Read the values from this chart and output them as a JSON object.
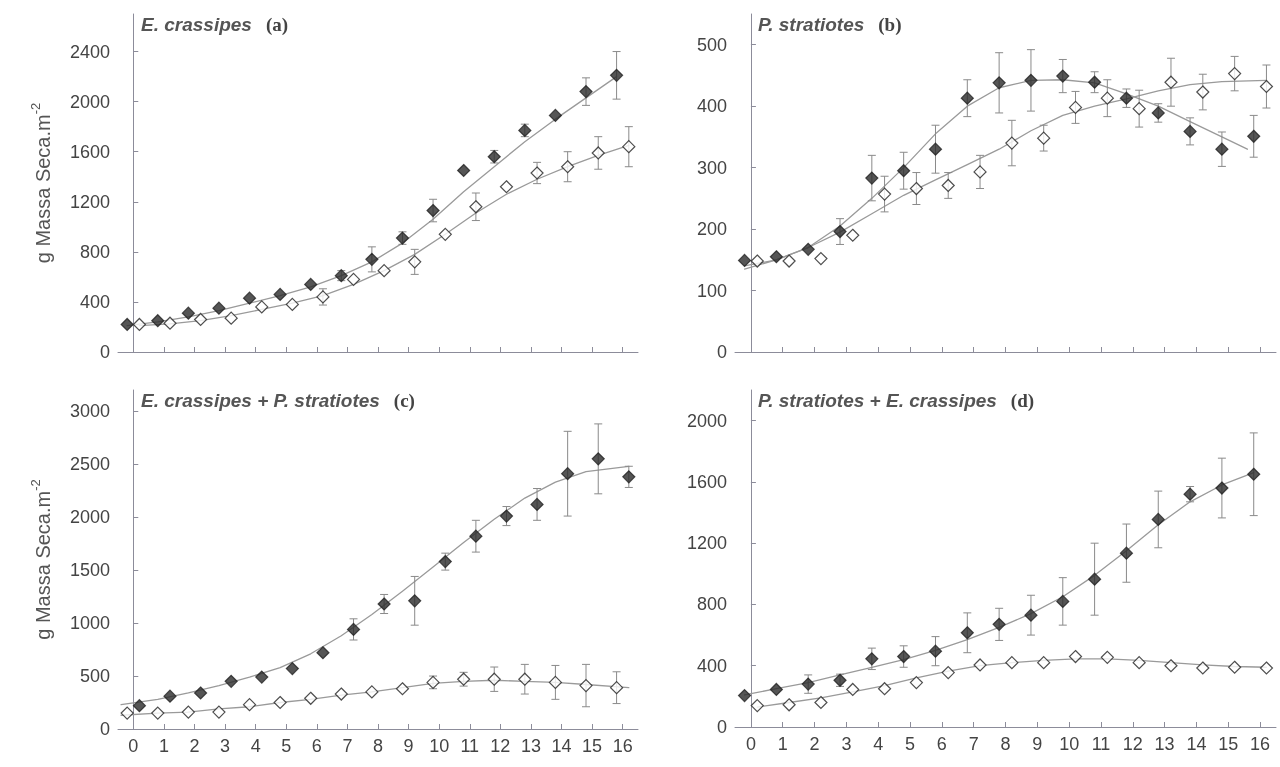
{
  "chart_data": [
    {
      "type": "scatter",
      "title": "E. crassipes (a)",
      "ylabel": "g Massa Seca.m$^{-2}$",
      "xlim": [
        -0.5,
        16.5
      ],
      "xticks": [
        0,
        1,
        2,
        3,
        4,
        5,
        6,
        7,
        8,
        9,
        10,
        11,
        12,
        13,
        14,
        15,
        16
      ],
      "ylim": [
        0,
        2700
      ],
      "yticks": [
        0,
        400,
        800,
        1200,
        1600,
        2000,
        2400
      ],
      "tick_labels": "y",
      "marker": "diamond",
      "series": [
        {
          "type": "line",
          "marker": "none",
          "color": "#9a9a9a",
          "x": [
            -0.2,
            0.8,
            1.8,
            2.8,
            3.8,
            4.8,
            5.8,
            6.8,
            7.8,
            8.8,
            9.8,
            10.8,
            11.8,
            12.8,
            13.8,
            14.8,
            15.8
          ],
          "values": [
            210,
            240,
            280,
            330,
            390,
            450,
            520,
            610,
            720,
            870,
            1060,
            1280,
            1480,
            1680,
            1860,
            2030,
            2200
          ]
        },
        {
          "type": "line",
          "marker": "none",
          "color": "#9a9a9a",
          "x": [
            0.2,
            1.2,
            2.2,
            3.2,
            4.2,
            5.2,
            6.2,
            7.2,
            8.2,
            9.2,
            10.2,
            11.2,
            12.2,
            13.2,
            14.2,
            15.2,
            16.2
          ],
          "values": [
            210,
            225,
            250,
            290,
            340,
            390,
            450,
            540,
            650,
            780,
            940,
            1110,
            1260,
            1380,
            1480,
            1570,
            1650
          ]
        },
        {
          "color": "#2b2b2b",
          "x": [
            -0.2,
            0.8,
            1.8,
            2.8,
            3.8,
            4.8,
            5.8,
            6.8,
            7.8,
            8.8,
            9.8,
            10.8,
            11.8,
            12.8,
            13.8,
            14.8,
            15.8
          ],
          "values": [
            220,
            250,
            310,
            350,
            430,
            460,
            540,
            610,
            740,
            910,
            1130,
            1450,
            1560,
            1770,
            1890,
            2080,
            2210
          ],
          "errors": [
            null,
            null,
            null,
            null,
            null,
            null,
            null,
            40,
            100,
            50,
            90,
            null,
            50,
            50,
            null,
            110,
            190
          ]
        },
        {
          "color": "#ffffff",
          "x": [
            0.2,
            1.2,
            2.2,
            3.2,
            4.2,
            5.2,
            6.2,
            7.2,
            8.2,
            9.2,
            10.2,
            11.2,
            12.2,
            13.2,
            14.2,
            15.2,
            16.2
          ],
          "values": [
            220,
            230,
            260,
            270,
            360,
            380,
            440,
            580,
            650,
            720,
            940,
            1160,
            1320,
            1430,
            1480,
            1590,
            1640
          ],
          "errors": [
            null,
            null,
            null,
            null,
            null,
            null,
            65,
            null,
            null,
            100,
            null,
            110,
            null,
            85,
            120,
            130,
            160
          ]
        }
      ]
    },
    {
      "type": "scatter",
      "title": "P. stratiotes (b)",
      "xlim": [
        -0.5,
        16.5
      ],
      "xticks": [
        0,
        1,
        2,
        3,
        4,
        5,
        6,
        7,
        8,
        9,
        10,
        11,
        12,
        13,
        14,
        15,
        16
      ],
      "ylim": [
        0,
        550
      ],
      "yticks": [
        0,
        100,
        200,
        300,
        400,
        500
      ],
      "tick_labels": "y",
      "marker": "diamond",
      "series": [
        {
          "type": "line",
          "marker": "none",
          "color": "#9a9a9a",
          "x": [
            -0.2,
            0.8,
            1.8,
            2.8,
            3.8,
            4.8,
            5.8,
            6.8,
            7.8,
            8.8,
            9.8,
            10.8,
            11.8,
            12.8,
            13.8,
            14.8,
            15.6
          ],
          "values": [
            140,
            150,
            170,
            205,
            250,
            300,
            355,
            400,
            430,
            442,
            443,
            438,
            420,
            400,
            375,
            350,
            330
          ]
        },
        {
          "type": "line",
          "marker": "none",
          "color": "#9a9a9a",
          "x": [
            -0.2,
            0.8,
            1.8,
            2.8,
            3.8,
            4.8,
            5.8,
            6.8,
            7.8,
            8.8,
            9.8,
            10.8,
            11.8,
            12.8,
            13.8,
            14.8,
            16.2
          ],
          "values": [
            135,
            150,
            170,
            195,
            225,
            255,
            280,
            305,
            330,
            360,
            385,
            400,
            412,
            425,
            435,
            440,
            442
          ]
        },
        {
          "color": "#2b2b2b",
          "x": [
            -0.2,
            0.8,
            1.8,
            2.8,
            3.8,
            4.8,
            5.8,
            6.8,
            7.8,
            8.8,
            9.8,
            10.8,
            11.8,
            12.8,
            13.8,
            14.8,
            15.8
          ],
          "values": [
            149,
            155,
            167,
            196,
            283,
            295,
            330,
            413,
            438,
            442,
            449,
            439,
            413,
            389,
            359,
            330,
            351
          ],
          "errors": [
            null,
            null,
            null,
            21,
            37,
            30,
            39,
            30,
            49,
            50,
            27,
            17,
            15,
            15,
            22,
            28,
            34
          ]
        },
        {
          "color": "#ffffff",
          "x": [
            0.2,
            1.2,
            2.2,
            3.2,
            4.2,
            5.2,
            6.2,
            7.2,
            8.2,
            9.2,
            10.2,
            11.2,
            12.2,
            13.2,
            14.2,
            15.2,
            16.2
          ],
          "values": [
            148,
            148,
            152,
            190,
            257,
            266,
            271,
            293,
            340,
            348,
            398,
            413,
            396,
            439,
            423,
            453,
            432
          ],
          "errors": [
            null,
            null,
            null,
            null,
            29,
            26,
            21,
            27,
            37,
            21,
            26,
            30,
            30,
            39,
            29,
            28,
            35
          ]
        }
      ]
    },
    {
      "type": "scatter",
      "title": "E. crassipes + P. stratiotes (c)",
      "ylabel": "g Massa Seca.m$^{-2}$",
      "xlim": [
        -0.5,
        16.5
      ],
      "xticks": [
        0,
        1,
        2,
        3,
        4,
        5,
        6,
        7,
        8,
        9,
        10,
        11,
        12,
        13,
        14,
        15,
        16
      ],
      "ylim": [
        0,
        3200
      ],
      "yticks": [
        0,
        500,
        1000,
        1500,
        2000,
        2500,
        3000
      ],
      "marker": "diamond",
      "series": [
        {
          "type": "line",
          "marker": "none",
          "color": "#9a9a9a",
          "x": [
            -0.4,
            0.8,
            1.8,
            2.8,
            3.8,
            4.8,
            5.8,
            6.8,
            7.8,
            8.8,
            9.8,
            10.8,
            11.8,
            12.8,
            13.8,
            14.8,
            16.2
          ],
          "values": [
            230,
            280,
            340,
            410,
            490,
            580,
            710,
            880,
            1080,
            1300,
            1530,
            1760,
            1980,
            2180,
            2330,
            2430,
            2480
          ]
        },
        {
          "type": "line",
          "marker": "none",
          "color": "#9a9a9a",
          "x": [
            -0.4,
            0.8,
            1.8,
            2.8,
            3.8,
            4.8,
            5.8,
            6.8,
            7.8,
            8.8,
            9.8,
            10.8,
            11.8,
            12.8,
            13.8,
            14.8,
            16.2
          ],
          "values": [
            130,
            150,
            160,
            190,
            210,
            250,
            280,
            320,
            350,
            390,
            430,
            450,
            460,
            450,
            440,
            420,
            390
          ]
        },
        {
          "color": "#2b2b2b",
          "x": [
            0.2,
            1.2,
            2.2,
            3.2,
            4.2,
            5.2,
            6.2,
            7.2,
            8.2,
            9.2,
            10.2,
            11.2,
            12.2,
            13.2,
            14.2,
            15.2,
            16.2
          ],
          "values": [
            220,
            310,
            340,
            450,
            490,
            570,
            720,
            940,
            1180,
            1210,
            1580,
            1820,
            2010,
            2120,
            2410,
            2550,
            2380
          ],
          "errors": [
            null,
            null,
            null,
            null,
            null,
            null,
            null,
            100,
            90,
            230,
            80,
            150,
            90,
            150,
            400,
            330,
            100
          ]
        },
        {
          "color": "#ffffff",
          "x": [
            -0.2,
            0.8,
            1.8,
            2.8,
            3.8,
            4.8,
            5.8,
            6.8,
            7.8,
            8.8,
            9.8,
            10.8,
            11.8,
            12.8,
            13.8,
            14.8,
            15.8
          ],
          "values": [
            150,
            150,
            160,
            160,
            230,
            250,
            290,
            330,
            350,
            380,
            440,
            470,
            470,
            470,
            440,
            410,
            390
          ],
          "errors": [
            null,
            null,
            null,
            null,
            null,
            null,
            null,
            null,
            null,
            null,
            60,
            65,
            115,
            140,
            160,
            200,
            150
          ]
        }
      ]
    },
    {
      "type": "scatter",
      "title": "P. stratiotes + E. crassipes (d)",
      "xlim": [
        -0.5,
        16.5
      ],
      "xticks": [
        0,
        1,
        2,
        3,
        4,
        5,
        6,
        7,
        8,
        9,
        10,
        11,
        12,
        13,
        14,
        15,
        16
      ],
      "ylim": [
        0,
        2200
      ],
      "yticks": [
        0,
        400,
        800,
        1200,
        1600,
        2000
      ],
      "marker": "diamond",
      "series": [
        {
          "type": "line",
          "marker": "none",
          "color": "#9a9a9a",
          "x": [
            -0.2,
            0.8,
            1.8,
            2.8,
            3.8,
            4.8,
            5.8,
            6.8,
            7.8,
            8.8,
            9.8,
            10.8,
            11.8,
            12.8,
            13.8,
            14.8,
            15.8
          ],
          "values": [
            210,
            250,
            290,
            340,
            390,
            440,
            500,
            570,
            650,
            740,
            850,
            990,
            1150,
            1320,
            1470,
            1580,
            1660
          ]
        },
        {
          "type": "line",
          "marker": "none",
          "color": "#9a9a9a",
          "x": [
            0.2,
            1.2,
            2.2,
            3.2,
            4.2,
            5.2,
            6.2,
            7.2,
            8.2,
            9.2,
            10.2,
            11.2,
            12.2,
            13.2,
            14.2,
            15.2,
            16.2
          ],
          "values": [
            130,
            160,
            190,
            230,
            270,
            320,
            365,
            400,
            420,
            435,
            445,
            445,
            435,
            420,
            405,
            395,
            390
          ]
        },
        {
          "color": "#2b2b2b",
          "x": [
            -0.2,
            0.8,
            1.8,
            2.8,
            3.8,
            4.8,
            5.8,
            6.8,
            7.8,
            8.8,
            9.8,
            10.8,
            11.8,
            12.8,
            13.8,
            14.8,
            15.8
          ],
          "values": [
            205,
            245,
            280,
            305,
            445,
            460,
            495,
            615,
            670,
            730,
            820,
            965,
            1135,
            1355,
            1520,
            1560,
            1650
          ],
          "errors": [
            null,
            null,
            60,
            40,
            70,
            70,
            95,
            130,
            105,
            130,
            155,
            235,
            190,
            185,
            50,
            195,
            270
          ]
        },
        {
          "color": "#ffffff",
          "x": [
            0.2,
            1.2,
            2.2,
            3.2,
            4.2,
            5.2,
            6.2,
            7.2,
            8.2,
            9.2,
            10.2,
            11.2,
            12.2,
            13.2,
            14.2,
            15.2,
            16.2
          ],
          "values": [
            140,
            145,
            160,
            245,
            250,
            290,
            355,
            405,
            420,
            420,
            460,
            455,
            420,
            400,
            385,
            390,
            385
          ]
        }
      ]
    }
  ]
}
